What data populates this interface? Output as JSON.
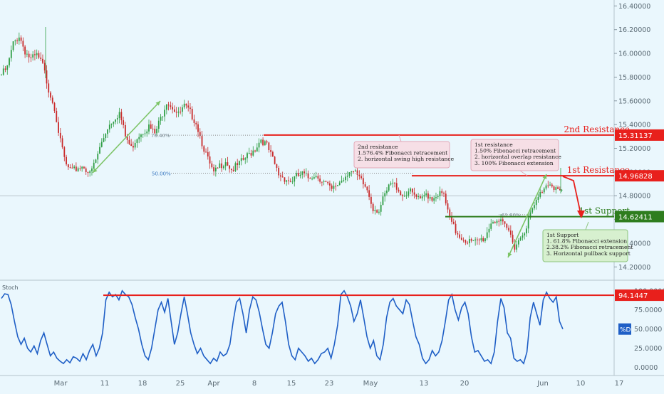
{
  "chart_data": [
    {
      "type": "candlestick",
      "title": "",
      "ylim": [
        14.1,
        16.45
      ],
      "y_ticks": [
        "16.40000",
        "16.20000",
        "16.00000",
        "15.80000",
        "15.60000",
        "15.40000",
        "15.20000",
        "15.00000",
        "14.80000",
        "14.60000",
        "14.40000",
        "14.20000"
      ],
      "x_ticks": [
        "Mar",
        "11",
        "18",
        "25",
        "Apr",
        "8",
        "15",
        "23",
        "May",
        "13",
        "20",
        "Jun",
        "10",
        "17"
      ],
      "close_path": [
        [
          0,
          15.82
        ],
        [
          3,
          15.88
        ],
        [
          6,
          16.08
        ],
        [
          9,
          16.15
        ],
        [
          12,
          16.02
        ],
        [
          15,
          15.95
        ],
        [
          18,
          15.98
        ],
        [
          21,
          15.9
        ],
        [
          24,
          15.7
        ],
        [
          27,
          15.55
        ],
        [
          30,
          15.25
        ],
        [
          33,
          15.05
        ],
        [
          36,
          15.0
        ],
        [
          39,
          15.04
        ],
        [
          42,
          15.05
        ],
        [
          45,
          14.98
        ],
        [
          48,
          15.1
        ],
        [
          51,
          15.25
        ],
        [
          54,
          15.38
        ],
        [
          57,
          15.45
        ],
        [
          60,
          15.5
        ],
        [
          63,
          15.3
        ],
        [
          66,
          15.2
        ],
        [
          69,
          15.3
        ],
        [
          72,
          15.35
        ],
        [
          75,
          15.38
        ],
        [
          78,
          15.32
        ],
        [
          81,
          15.45
        ],
        [
          84,
          15.6
        ],
        [
          87,
          15.55
        ],
        [
          90,
          15.48
        ],
        [
          93,
          15.55
        ],
        [
          96,
          15.5
        ],
        [
          99,
          15.42
        ],
        [
          102,
          15.25
        ],
        [
          105,
          15.1
        ],
        [
          108,
          14.98
        ],
        [
          111,
          15.05
        ],
        [
          114,
          15.1
        ],
        [
          117,
          15.02
        ],
        [
          120,
          15.05
        ],
        [
          123,
          15.1
        ],
        [
          126,
          15.15
        ],
        [
          129,
          15.2
        ],
        [
          132,
          15.28
        ],
        [
          135,
          15.22
        ],
        [
          138,
          15.1
        ],
        [
          141,
          14.98
        ],
        [
          144,
          14.95
        ],
        [
          147,
          14.92
        ],
        [
          150,
          14.96
        ],
        [
          153,
          14.98
        ],
        [
          156,
          14.95
        ],
        [
          159,
          14.98
        ],
        [
          162,
          14.95
        ],
        [
          165,
          14.9
        ],
        [
          168,
          14.84
        ],
        [
          171,
          14.9
        ],
        [
          174,
          14.95
        ],
        [
          177,
          15.02
        ],
        [
          180,
          14.98
        ],
        [
          183,
          14.92
        ],
        [
          186,
          14.85
        ],
        [
          189,
          14.7
        ],
        [
          192,
          14.68
        ],
        [
          195,
          14.8
        ],
        [
          198,
          14.9
        ],
        [
          201,
          14.88
        ],
        [
          204,
          14.8
        ],
        [
          207,
          14.84
        ],
        [
          210,
          14.8
        ],
        [
          213,
          14.75
        ],
        [
          216,
          14.82
        ],
        [
          219,
          14.78
        ],
        [
          222,
          14.82
        ],
        [
          225,
          14.8
        ],
        [
          228,
          14.6
        ],
        [
          231,
          14.5
        ],
        [
          234,
          14.45
        ],
        [
          237,
          14.42
        ],
        [
          240,
          14.4
        ],
        [
          243,
          14.42
        ],
        [
          246,
          14.45
        ],
        [
          249,
          14.58
        ],
        [
          252,
          14.6
        ],
        [
          255,
          14.55
        ],
        [
          258,
          14.5
        ],
        [
          261,
          14.38
        ],
        [
          264,
          14.45
        ],
        [
          267,
          14.55
        ],
        [
          270,
          14.68
        ],
        [
          273,
          14.78
        ],
        [
          276,
          14.88
        ],
        [
          279,
          14.92
        ],
        [
          282,
          14.86
        ],
        [
          285,
          14.82
        ]
      ],
      "fib_labels": [
        {
          "text": "76.40%",
          "y": 15.31
        },
        {
          "text": "50.00%",
          "y": 14.99
        },
        {
          "text": "61.80%",
          "y": 14.64
        }
      ],
      "levels": [
        {
          "label": "2nd Resistance",
          "value": 15.31137,
          "value_text": "15.31137",
          "color": "#e8201c"
        },
        {
          "label": "1st Resistance",
          "value": 14.96828,
          "value_text": "14.96828",
          "color": "#e8201c"
        },
        {
          "label": "1st Support",
          "value": 14.62411,
          "value_text": "14.62411",
          "color": "#2e7d1e"
        }
      ],
      "annotations": [
        {
          "lines": [
            "2nd resistance",
            "1.576.4% Fibonacci retracement",
            "2. horizontal swing high resistance"
          ]
        },
        {
          "lines": [
            "1st resistance",
            "1.50% Fibonacci retracement",
            "2. horizontal overlap resistance",
            "3. 100% Fibonacci extension"
          ]
        },
        {
          "lines": [
            "1st Support",
            "1. 61.8% Fibonacci extension",
            "2.38.2% Fibonacci retracement",
            "3. Horizontal pullback support"
          ]
        }
      ],
      "current_price": 14.8
    },
    {
      "type": "line",
      "name": "Stoch",
      "ylim": [
        -5,
        110
      ],
      "y_ticks": [
        "100.0000",
        "75.0000",
        "50.0000",
        "25.0000",
        "0.0000"
      ],
      "level": {
        "value": 94.1447,
        "value_text": "94.1447"
      },
      "current_label": "%D",
      "current_value": 50,
      "values": [
        90,
        96,
        95,
        82,
        60,
        40,
        30,
        38,
        25,
        20,
        28,
        18,
        35,
        45,
        30,
        15,
        20,
        12,
        8,
        5,
        10,
        6,
        14,
        12,
        8,
        18,
        10,
        22,
        30,
        15,
        25,
        45,
        88,
        98,
        92,
        95,
        88,
        100,
        95,
        92,
        82,
        65,
        50,
        30,
        15,
        10,
        25,
        50,
        75,
        85,
        72,
        90,
        60,
        30,
        45,
        70,
        92,
        70,
        45,
        30,
        18,
        25,
        15,
        10,
        5,
        12,
        8,
        20,
        15,
        18,
        30,
        60,
        85,
        90,
        70,
        45,
        75,
        92,
        88,
        72,
        50,
        30,
        25,
        45,
        70,
        80,
        85,
        60,
        30,
        15,
        10,
        25,
        20,
        15,
        8,
        12,
        5,
        10,
        18,
        20,
        25,
        12,
        30,
        55,
        95,
        100,
        92,
        80,
        60,
        70,
        88,
        65,
        40,
        25,
        35,
        15,
        10,
        30,
        65,
        85,
        90,
        80,
        75,
        70,
        88,
        82,
        60,
        40,
        30,
        12,
        5,
        10,
        22,
        15,
        20,
        35,
        60,
        88,
        95,
        75,
        62,
        78,
        85,
        70,
        40,
        20,
        22,
        15,
        8,
        10,
        5,
        20,
        60,
        90,
        78,
        45,
        38,
        12,
        8,
        10,
        5,
        20,
        65,
        85,
        70,
        55,
        88,
        98,
        90,
        85,
        92,
        60,
        50
      ]
    }
  ]
}
